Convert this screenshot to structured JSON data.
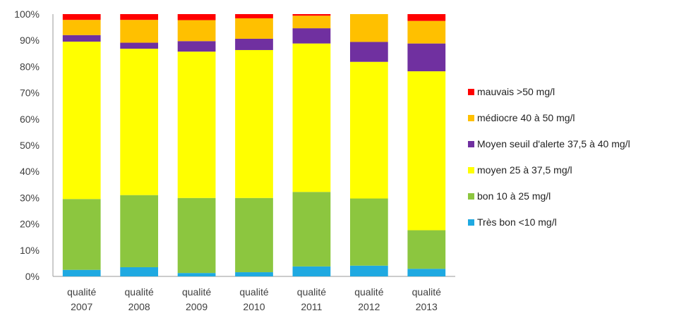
{
  "chart_data": {
    "type": "bar",
    "stacked": true,
    "percent": true,
    "categories": [
      "qualité 2007",
      "qualité 2008",
      "qualité 2009",
      "qualité 2010",
      "qualité 2011",
      "qualité 2012",
      "qualité 2013"
    ],
    "category_lines": [
      [
        "qualité",
        "2007"
      ],
      [
        "qualité",
        "2008"
      ],
      [
        "qualité",
        "2009"
      ],
      [
        "qualité",
        "2010"
      ],
      [
        "qualité",
        "2011"
      ],
      [
        "qualité",
        "2012"
      ],
      [
        "qualité",
        "2013"
      ]
    ],
    "yticks": [
      "0%",
      "10%",
      "20%",
      "30%",
      "40%",
      "50%",
      "60%",
      "70%",
      "80%",
      "90%",
      "100%"
    ],
    "ylim": [
      0,
      100
    ],
    "grid": false,
    "legend_position": "right",
    "series": [
      {
        "name": "Très bon <10 mg/l",
        "color": "#1FA9E1",
        "values": [
          2.5,
          3.5,
          1.3,
          1.6,
          3.8,
          4.1,
          2.9
        ]
      },
      {
        "name": "bon 10 à 25  mg/l",
        "color": "#8CC63F",
        "values": [
          27.0,
          27.5,
          28.6,
          28.3,
          28.4,
          25.6,
          14.7
        ]
      },
      {
        "name": "moyen 25 à 37,5  mg/l",
        "color": "#FFFF00",
        "values": [
          60.0,
          55.8,
          55.8,
          56.4,
          56.6,
          52.1,
          60.6
        ]
      },
      {
        "name": "Moyen seuil d'alerte 37,5 à 40  mg/l",
        "color": "#7030A0",
        "values": [
          2.5,
          2.3,
          4.0,
          4.3,
          5.8,
          7.6,
          10.6
        ]
      },
      {
        "name": "médiocre  40 à 50  mg/l",
        "color": "#FFC000",
        "values": [
          5.8,
          8.7,
          8.0,
          7.8,
          4.8,
          10.6,
          8.6
        ]
      },
      {
        "name": "mauvais >50  mg/l",
        "color": "#FF0000",
        "values": [
          2.2,
          2.2,
          2.3,
          1.6,
          0.6,
          0.0,
          2.6
        ]
      }
    ]
  }
}
